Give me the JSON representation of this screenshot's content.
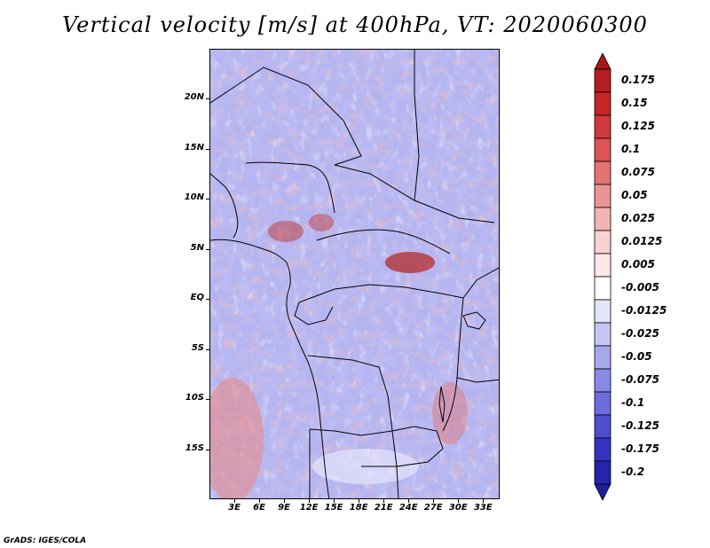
{
  "title": "Vertical velocity [m/s] at 400hPa, VT: 2020060300",
  "footer": "GrADS: IGES/COLA",
  "map": {
    "lat_range": [
      -20,
      25
    ],
    "lon_range": [
      0,
      35
    ],
    "lat_ticks": [
      {
        "value": 20,
        "label": "20N"
      },
      {
        "value": 15,
        "label": "15N"
      },
      {
        "value": 10,
        "label": "10N"
      },
      {
        "value": 5,
        "label": "5N"
      },
      {
        "value": 0,
        "label": "EQ"
      },
      {
        "value": -5,
        "label": "5S"
      },
      {
        "value": -10,
        "label": "10S"
      },
      {
        "value": -15,
        "label": "15S"
      }
    ],
    "lon_ticks": [
      {
        "value": 3,
        "label": "3E"
      },
      {
        "value": 6,
        "label": "6E"
      },
      {
        "value": 9,
        "label": "9E"
      },
      {
        "value": 12,
        "label": "12E"
      },
      {
        "value": 15,
        "label": "15E"
      },
      {
        "value": 18,
        "label": "18E"
      },
      {
        "value": 21,
        "label": "21E"
      },
      {
        "value": 24,
        "label": "24E"
      },
      {
        "value": 27,
        "label": "27E"
      },
      {
        "value": 30,
        "label": "30E"
      },
      {
        "value": 33,
        "label": "33E"
      }
    ]
  },
  "colorbar": {
    "levels": [
      {
        "label": "0.175",
        "color": "#b41e1e"
      },
      {
        "label": "0.15",
        "color": "#c42626"
      },
      {
        "label": "0.125",
        "color": "#d03a3a"
      },
      {
        "label": "0.1",
        "color": "#dc5454"
      },
      {
        "label": "0.075",
        "color": "#e27474"
      },
      {
        "label": "0.05",
        "color": "#ea9494"
      },
      {
        "label": "0.025",
        "color": "#f2b4b4"
      },
      {
        "label": "0.0125",
        "color": "#f8d2d2"
      },
      {
        "label": "0.005",
        "color": "#fde8e8"
      },
      {
        "label": "-0.005",
        "color": "#ffffff"
      },
      {
        "label": "-0.0125",
        "color": "#e4e4fb"
      },
      {
        "label": "-0.025",
        "color": "#c6c6f4"
      },
      {
        "label": "-0.05",
        "color": "#a8a8ee"
      },
      {
        "label": "-0.075",
        "color": "#8a8ae6"
      },
      {
        "label": "-0.1",
        "color": "#6c6cdc"
      },
      {
        "label": "-0.125",
        "color": "#4e4ed0"
      },
      {
        "label": "-0.175",
        "color": "#3434c0"
      },
      {
        "label": "-0.2",
        "color": "#2424ac"
      }
    ],
    "top_color": "#a41818",
    "bottom_color": "#1c1c9c"
  }
}
